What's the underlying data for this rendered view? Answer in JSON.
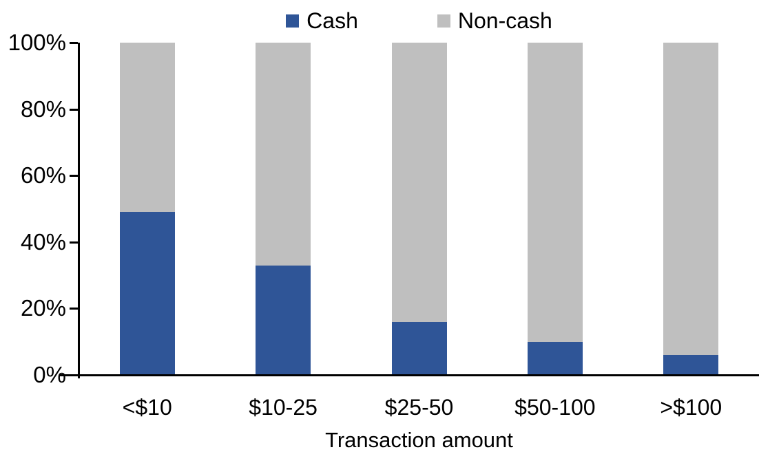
{
  "chart_data": {
    "type": "bar",
    "subtype": "stacked-100pct",
    "categories": [
      "<$10",
      "$10-25",
      "$25-50",
      "$50-100",
      ">$100"
    ],
    "series": [
      {
        "name": "Cash",
        "color": "#2F5597",
        "values": [
          49,
          33,
          16,
          10,
          6
        ]
      },
      {
        "name": "Non-cash",
        "color": "#BFBFBF",
        "values": [
          51,
          67,
          84,
          90,
          94
        ]
      }
    ],
    "title": "",
    "xlabel": "Transaction amount",
    "ylabel": "",
    "ylim": [
      0,
      100
    ],
    "yticks": [
      "0%",
      "20%",
      "40%",
      "60%",
      "80%",
      "100%"
    ],
    "legend_position": "top-center",
    "grid": false,
    "axis_color": "#000000",
    "text_color": "#000000",
    "background_color": "#FFFFFF"
  }
}
